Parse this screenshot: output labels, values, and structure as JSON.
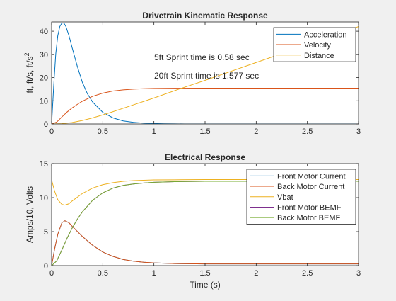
{
  "chart_data": [
    {
      "type": "line",
      "title": "Drivetrain Kinematic Response",
      "xlabel": "",
      "ylabel": "ft, ft/s, ft/s",
      "ylabel_superscript": "2",
      "xlim": [
        0,
        3
      ],
      "ylim": [
        0,
        44
      ],
      "xticks": [
        0,
        0.5,
        1,
        1.5,
        2,
        2.5,
        3
      ],
      "xtick_labels": [
        "0",
        "0.5",
        "1",
        "1.5",
        "2",
        "2.5",
        "3"
      ],
      "yticks": [
        0,
        10,
        20,
        30,
        40
      ],
      "ytick_labels": [
        "0",
        "10",
        "20",
        "30",
        "40"
      ],
      "grid": false,
      "legend_position": "top-right",
      "annotations": [
        {
          "text": "5ft Sprint time is 0.58 sec",
          "x": 1.0,
          "y": 27.5
        },
        {
          "text": "20ft Sprint time is 1.577 sec",
          "x": 1.0,
          "y": 19.5
        }
      ],
      "series": [
        {
          "name": "Acceleration",
          "color": "#0072BD",
          "x": [
            0,
            0.02,
            0.04,
            0.06,
            0.08,
            0.1,
            0.12,
            0.14,
            0.17,
            0.2,
            0.25,
            0.3,
            0.35,
            0.4,
            0.5,
            0.6,
            0.7,
            0.8,
            0.9,
            1.0,
            1.1,
            1.2,
            1.3,
            1.5,
            2.0,
            2.5,
            3.0
          ],
          "y": [
            0,
            16,
            30,
            38,
            42,
            43.5,
            43.5,
            42,
            38,
            33,
            25,
            18,
            13,
            9.5,
            5,
            2.6,
            1.3,
            0.7,
            0.35,
            0.18,
            0.08,
            0.03,
            0.01,
            0,
            0,
            0,
            0
          ]
        },
        {
          "name": "Velocity",
          "color": "#D95319",
          "x": [
            0,
            0.05,
            0.1,
            0.15,
            0.2,
            0.25,
            0.3,
            0.4,
            0.5,
            0.6,
            0.7,
            0.8,
            0.9,
            1.0,
            1.2,
            1.5,
            2.0,
            2.5,
            3.0
          ],
          "y": [
            0,
            0.8,
            3,
            5.1,
            6.9,
            8.4,
            9.8,
            11.9,
            13.3,
            14.2,
            14.7,
            15.0,
            15.2,
            15.3,
            15.4,
            15.45,
            15.45,
            15.45,
            15.45
          ]
        },
        {
          "name": "Distance",
          "color": "#EDB120",
          "x": [
            0,
            0.1,
            0.2,
            0.3,
            0.4,
            0.5,
            0.58,
            0.75,
            1.0,
            1.25,
            1.5,
            1.577,
            2.0,
            2.5,
            3.0
          ],
          "y": [
            0,
            0.1,
            0.6,
            1.5,
            2.6,
            3.9,
            5,
            7.5,
            11.2,
            15.1,
            18.8,
            20,
            26.5,
            34.2,
            42
          ]
        }
      ]
    },
    {
      "type": "line",
      "title": "Electrical Response",
      "xlabel": "Time (s)",
      "ylabel": "Amps/10, Volts",
      "xlim": [
        0,
        3
      ],
      "ylim": [
        0,
        15
      ],
      "xticks": [
        0,
        0.5,
        1,
        1.5,
        2,
        2.5,
        3
      ],
      "xtick_labels": [
        "0",
        "0.5",
        "1",
        "1.5",
        "2",
        "2.5",
        "3"
      ],
      "yticks": [
        0,
        5,
        10,
        15
      ],
      "ytick_labels": [
        "0",
        "5",
        "10",
        "15"
      ],
      "grid": false,
      "legend_position": "top-right",
      "series": [
        {
          "name": "Front Motor Current",
          "color": "#0072BD",
          "x": [
            0,
            0.03,
            0.06,
            0.1,
            0.13,
            0.17,
            0.2,
            0.3,
            0.4,
            0.5,
            0.6,
            0.7,
            0.8,
            0.9,
            1.0,
            1.2,
            1.5,
            2.0,
            2.5,
            3.0
          ],
          "y": [
            0,
            2.5,
            4.6,
            6.3,
            6.6,
            6.3,
            5.8,
            4.3,
            3.0,
            2.0,
            1.35,
            0.9,
            0.65,
            0.5,
            0.4,
            0.3,
            0.25,
            0.25,
            0.25,
            0.25
          ]
        },
        {
          "name": "Back Motor Current",
          "color": "#D95319",
          "x": [
            0,
            0.03,
            0.06,
            0.1,
            0.13,
            0.17,
            0.2,
            0.3,
            0.4,
            0.5,
            0.6,
            0.7,
            0.8,
            0.9,
            1.0,
            1.2,
            1.5,
            2.0,
            2.5,
            3.0
          ],
          "y": [
            0,
            2.5,
            4.6,
            6.3,
            6.6,
            6.3,
            5.8,
            4.3,
            3.0,
            2.0,
            1.35,
            0.9,
            0.65,
            0.5,
            0.4,
            0.3,
            0.25,
            0.25,
            0.25,
            0.25
          ]
        },
        {
          "name": "Vbat",
          "color": "#EDB120",
          "x": [
            0,
            0.03,
            0.06,
            0.1,
            0.13,
            0.17,
            0.2,
            0.3,
            0.4,
            0.5,
            0.6,
            0.7,
            0.8,
            1.0,
            1.2,
            1.5,
            2.0,
            2.5,
            3.0
          ],
          "y": [
            12.6,
            10.9,
            9.7,
            9.0,
            8.9,
            9.1,
            9.5,
            10.6,
            11.4,
            11.9,
            12.2,
            12.4,
            12.5,
            12.6,
            12.62,
            12.65,
            12.65,
            12.65,
            12.65
          ]
        },
        {
          "name": "Front Motor BEMF",
          "color": "#7E2F8E",
          "x": [
            0,
            0.05,
            0.1,
            0.15,
            0.2,
            0.25,
            0.3,
            0.4,
            0.5,
            0.6,
            0.7,
            0.8,
            0.9,
            1.0,
            1.2,
            1.5,
            2.0,
            2.5,
            3.0
          ],
          "y": [
            0,
            0.7,
            2.3,
            4.0,
            5.5,
            6.8,
            7.9,
            9.6,
            10.7,
            11.4,
            11.8,
            12.0,
            12.15,
            12.25,
            12.35,
            12.4,
            12.4,
            12.4,
            12.4
          ]
        },
        {
          "name": "Back Motor BEMF",
          "color": "#77AC30",
          "x": [
            0,
            0.05,
            0.1,
            0.15,
            0.2,
            0.25,
            0.3,
            0.4,
            0.5,
            0.6,
            0.7,
            0.8,
            0.9,
            1.0,
            1.2,
            1.5,
            2.0,
            2.5,
            3.0
          ],
          "y": [
            0,
            0.7,
            2.3,
            4.0,
            5.5,
            6.8,
            7.9,
            9.6,
            10.7,
            11.4,
            11.8,
            12.0,
            12.15,
            12.25,
            12.35,
            12.4,
            12.4,
            12.4,
            12.4
          ]
        }
      ]
    }
  ]
}
